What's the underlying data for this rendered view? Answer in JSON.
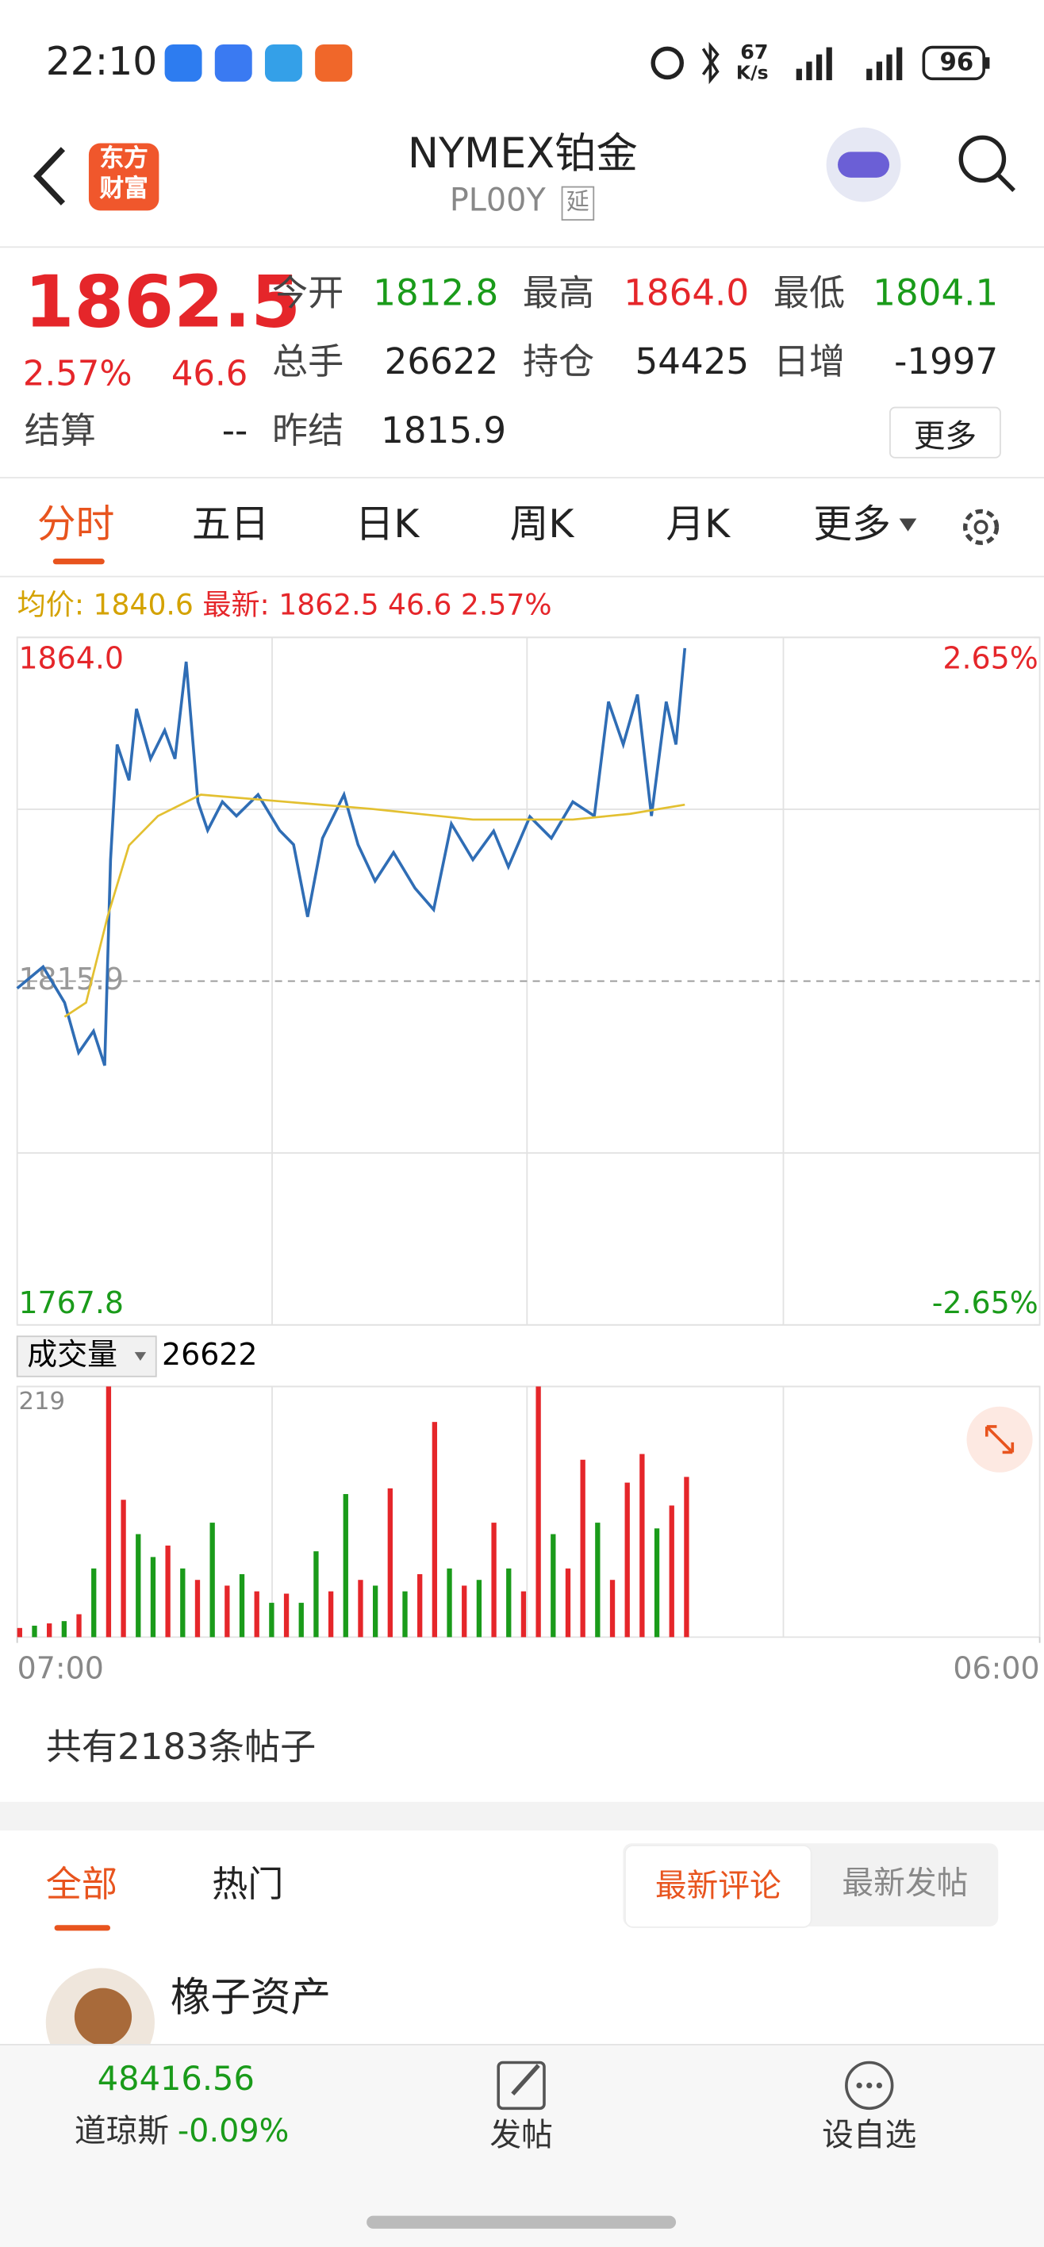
{
  "status_bar": {
    "time": "22:10",
    "net_speed": "67",
    "net_unit": "K/s",
    "battery": "96"
  },
  "header": {
    "logo_line1": "东方",
    "logo_line2": "财富",
    "title": "NYMEX铂金",
    "code": "PL00Y",
    "tag": "延"
  },
  "quote": {
    "price": "1862.5",
    "change_pct": "2.57%",
    "change": "46.6",
    "fields": [
      {
        "label": "今开",
        "value": "1812.8"
      },
      {
        "label": "最高",
        "value": "1864.0"
      },
      {
        "label": "最低",
        "value": "1804.1"
      },
      {
        "label": "总手",
        "value": "26622"
      },
      {
        "label": "持仓",
        "value": "54425"
      },
      {
        "label": "日增",
        "value": "-1997"
      },
      {
        "label": "结算",
        "value": "--"
      },
      {
        "label": "昨结",
        "value": "1815.9"
      }
    ],
    "more": "更多"
  },
  "tabs": [
    "分时",
    "五日",
    "日K",
    "周K",
    "月K",
    "更多"
  ],
  "info": {
    "avg_label": "均价:",
    "avg": "1840.6",
    "latest_label": "最新:",
    "latest": "1862.5 46.6 2.57%"
  },
  "chart_data": [
    {
      "type": "line",
      "xlim": [
        0,
        1380
      ],
      "ylim": [
        1767.8,
        1864.0
      ],
      "yticks": [
        {
          "value": 1864.0,
          "label": "1864.0"
        },
        {
          "value": 1815.9,
          "label": "1815.9"
        },
        {
          "value": 1767.8,
          "label": "1767.8"
        }
      ],
      "y2lim": [
        -2.65,
        2.65
      ],
      "y2ticks": [
        {
          "value": 2.65,
          "label": "2.65%"
        },
        {
          "value": -2.65,
          "label": "-2.65%"
        }
      ],
      "series": [
        {
          "color": "#2f6db5",
          "x": [
            0,
            35,
            64,
            83,
            103,
            118,
            126,
            135,
            151,
            161,
            180,
            199,
            213,
            228,
            244,
            257,
            277,
            296,
            325,
            354,
            373,
            392,
            412,
            441,
            460,
            483,
            508,
            537,
            562,
            586,
            615,
            643,
            663,
            692,
            721,
            750,
            779,
            798,
            818,
            837,
            856,
            876,
            889,
            901
          ],
          "values": [
            1814.9,
            1817.9,
            1812.9,
            1805.9,
            1808.9,
            1804.1,
            1832.9,
            1849.0,
            1844.0,
            1854.0,
            1847.0,
            1851.0,
            1847.0,
            1860.6,
            1841.0,
            1837.0,
            1841.0,
            1839.0,
            1842.0,
            1837.0,
            1835.0,
            1824.9,
            1835.9,
            1842.0,
            1835.0,
            1829.9,
            1833.9,
            1828.9,
            1825.9,
            1837.9,
            1832.9,
            1836.9,
            1831.9,
            1838.9,
            1835.9,
            1841.0,
            1839.0,
            1855.0,
            1849.0,
            1856.0,
            1839.0,
            1855.0,
            1849.0,
            1862.5
          ]
        },
        {
          "color": "#e3c031",
          "x": [
            64,
            93,
            122,
            151,
            190,
            248,
            363,
            479,
            615,
            750,
            827,
            901
          ],
          "values": [
            1810.9,
            1812.9,
            1824.9,
            1834.9,
            1839.0,
            1842.0,
            1841.0,
            1840.0,
            1838.5,
            1838.5,
            1839.3,
            1840.6
          ]
        }
      ]
    },
    {
      "type": "bar",
      "title": "成交量",
      "annotation": "26622",
      "xlim": [
        0,
        1380
      ],
      "xticks": [
        {
          "value": 0,
          "label": "07:00"
        },
        {
          "value": 1380,
          "label": "06:00"
        }
      ],
      "ylim": [
        0,
        219
      ],
      "yticks": [
        219
      ],
      "x": [
        0,
        20,
        40,
        60,
        80,
        100,
        120,
        140,
        160,
        180,
        200,
        220,
        240,
        260,
        280,
        300,
        320,
        340,
        360,
        380,
        400,
        420,
        440,
        460,
        480,
        500,
        520,
        540,
        560,
        580,
        600,
        620,
        640,
        660,
        680,
        700,
        720,
        740,
        760,
        780,
        800,
        820,
        840,
        860,
        880,
        900
      ],
      "values": [
        8,
        10,
        12,
        14,
        20,
        60,
        219,
        120,
        90,
        70,
        80,
        60,
        50,
        100,
        45,
        55,
        40,
        30,
        38,
        30,
        75,
        40,
        125,
        50,
        45,
        130,
        40,
        55,
        188,
        60,
        45,
        50,
        100,
        60,
        40,
        219,
        90,
        60,
        155,
        100,
        50,
        135,
        160,
        95,
        115,
        140
      ],
      "colors": [
        "#e5262a",
        "#1a9b1a",
        "#e5262a",
        "#1a9b1a",
        "#e5262a",
        "#1a9b1a",
        "#e5262a",
        "#e5262a",
        "#1a9b1a",
        "#1a9b1a",
        "#e5262a",
        "#1a9b1a",
        "#e5262a",
        "#1a9b1a",
        "#e5262a",
        "#1a9b1a",
        "#e5262a",
        "#1a9b1a",
        "#e5262a",
        "#1a9b1a",
        "#1a9b1a",
        "#e5262a",
        "#1a9b1a",
        "#e5262a",
        "#1a9b1a",
        "#e5262a",
        "#1a9b1a",
        "#e5262a",
        "#e5262a",
        "#1a9b1a",
        "#e5262a",
        "#1a9b1a",
        "#e5262a",
        "#1a9b1a",
        "#e5262a",
        "#e5262a",
        "#1a9b1a",
        "#e5262a",
        "#e5262a",
        "#1a9b1a",
        "#e5262a",
        "#e5262a",
        "#e5262a",
        "#1a9b1a",
        "#e5262a",
        "#e5262a"
      ]
    }
  ],
  "posts": {
    "count_text": "共有2183条帖子",
    "tabs": [
      "全部",
      "热门"
    ],
    "sort": [
      "最新评论",
      "最新发帖"
    ],
    "user": "橡子资产"
  },
  "bottom_bar": {
    "index_value": "48416.56",
    "index_name": "道琼斯",
    "index_change": "-0.09%",
    "post": "发帖",
    "watch": "设自选"
  }
}
